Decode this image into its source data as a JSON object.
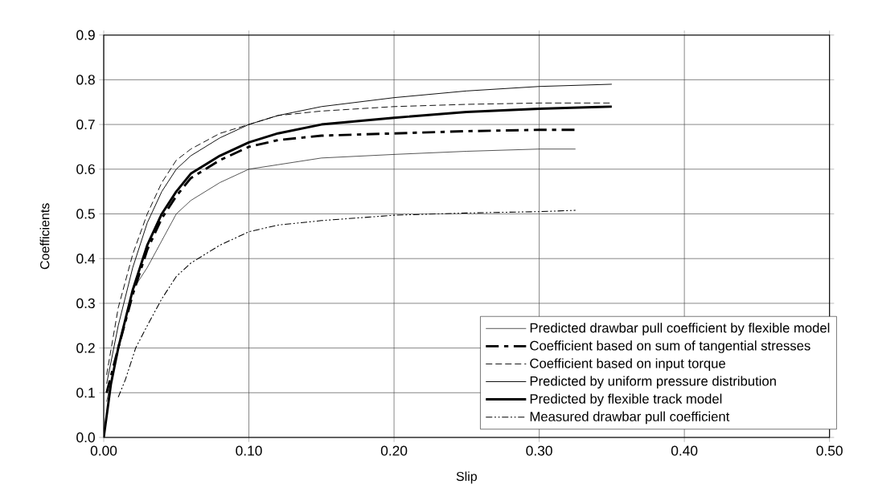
{
  "chart_data": {
    "type": "line",
    "xlabel": "Slip",
    "ylabel": "Coefficients",
    "xlim": [
      0,
      0.5
    ],
    "xticks": [
      {
        "value": 0,
        "label": "0.00"
      },
      {
        "value": 0.1,
        "label": "0.10"
      },
      {
        "value": 0.2,
        "label": "0.20"
      },
      {
        "value": 0.3,
        "label": "0.30"
      },
      {
        "value": 0.4,
        "label": "0.40"
      },
      {
        "value": 0.5,
        "label": "0.50"
      }
    ],
    "ylim": [
      0,
      0.9
    ],
    "yticks": [
      {
        "value": 0,
        "label": "0.0"
      },
      {
        "value": 0.1,
        "label": "0.1"
      },
      {
        "value": 0.2,
        "label": "0.2"
      },
      {
        "value": 0.3,
        "label": "0.3"
      },
      {
        "value": 0.4,
        "label": "0.4"
      },
      {
        "value": 0.5,
        "label": "0.5"
      },
      {
        "value": 0.6,
        "label": "0.6"
      },
      {
        "value": 0.7,
        "label": "0.7"
      },
      {
        "value": 0.8,
        "label": "0.8"
      },
      {
        "value": 0.9,
        "label": "0.9"
      }
    ],
    "grid": true,
    "legend": "bottom right",
    "marker": "none",
    "series": [
      {
        "name": "Predicted drawbar pull coefficient by flexible model",
        "color": "#000000",
        "line_style": "solid",
        "x": [
          0.002,
          0.01,
          0.02,
          0.03,
          0.04,
          0.05,
          0.06,
          0.08,
          0.1,
          0.12,
          0.15,
          0.2,
          0.25,
          0.3,
          0.325
        ],
        "values": [
          0.08,
          0.2,
          0.33,
          0.38,
          0.44,
          0.5,
          0.53,
          0.57,
          0.6,
          0.61,
          0.625,
          0.633,
          0.64,
          0.645,
          0.645
        ]
      },
      {
        "name": "Coefficient based on sum of tangential stresses",
        "color": "#000000",
        "line_style": "dashdot",
        "x": [
          0.002,
          0.01,
          0.02,
          0.03,
          0.04,
          0.05,
          0.06,
          0.08,
          0.1,
          0.12,
          0.15,
          0.2,
          0.25,
          0.3,
          0.325
        ],
        "values": [
          0.1,
          0.2,
          0.32,
          0.42,
          0.49,
          0.54,
          0.58,
          0.62,
          0.65,
          0.665,
          0.675,
          0.68,
          0.685,
          0.688,
          0.688
        ]
      },
      {
        "name": "Coefficient based on input torque",
        "color": "#000000",
        "line_style": "dashed",
        "x": [
          0.002,
          0.01,
          0.02,
          0.03,
          0.04,
          0.05,
          0.06,
          0.08,
          0.1,
          0.12,
          0.15,
          0.2,
          0.25,
          0.3,
          0.35
        ],
        "values": [
          0.14,
          0.29,
          0.41,
          0.5,
          0.57,
          0.62,
          0.645,
          0.68,
          0.7,
          0.72,
          0.73,
          0.74,
          0.745,
          0.748,
          0.748
        ]
      },
      {
        "name": "Predicted by uniform pressure distribution",
        "color": "#000000",
        "line_style": "solid",
        "x": [
          0.002,
          0.01,
          0.02,
          0.03,
          0.04,
          0.05,
          0.06,
          0.08,
          0.1,
          0.12,
          0.15,
          0.2,
          0.25,
          0.3,
          0.35
        ],
        "values": [
          0.12,
          0.25,
          0.38,
          0.48,
          0.55,
          0.6,
          0.63,
          0.67,
          0.7,
          0.72,
          0.74,
          0.76,
          0.775,
          0.785,
          0.79
        ]
      },
      {
        "name": "Predicted by flexible track model",
        "color": "#000000",
        "line_style": "solid",
        "x": [
          0,
          0.005,
          0.01,
          0.02,
          0.03,
          0.04,
          0.05,
          0.06,
          0.08,
          0.1,
          0.12,
          0.15,
          0.2,
          0.25,
          0.3,
          0.35
        ],
        "values": [
          0,
          0.12,
          0.2,
          0.33,
          0.43,
          0.5,
          0.55,
          0.59,
          0.63,
          0.66,
          0.68,
          0.7,
          0.715,
          0.728,
          0.735,
          0.74
        ]
      },
      {
        "name": "Measured drawbar pull coefficient",
        "color": "#000000",
        "line_style": "dashdotdot",
        "x": [
          0.01,
          0.015,
          0.022,
          0.03,
          0.04,
          0.05,
          0.06,
          0.08,
          0.1,
          0.12,
          0.15,
          0.2,
          0.25,
          0.3,
          0.325
        ],
        "values": [
          0.09,
          0.13,
          0.2,
          0.25,
          0.31,
          0.36,
          0.39,
          0.43,
          0.46,
          0.475,
          0.485,
          0.497,
          0.502,
          0.505,
          0.508
        ]
      }
    ]
  }
}
